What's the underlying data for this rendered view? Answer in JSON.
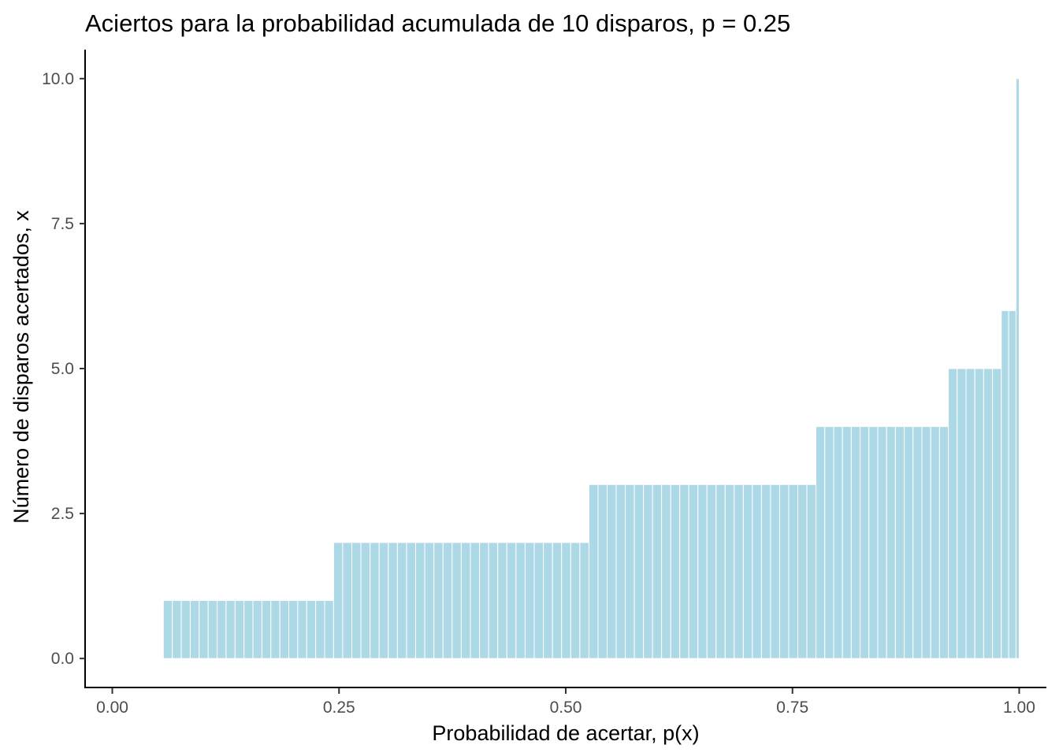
{
  "chart_data": {
    "type": "bar",
    "title": "Aciertos para la probabilidad acumulada de 10 disparos, p = 0.25",
    "xlabel": "Probabilidad de acertar, p(x)",
    "ylabel": "Número de disparos acertados, x",
    "xlim": [
      -0.03,
      1.03
    ],
    "ylim": [
      -0.5,
      10.5
    ],
    "xticks": [
      0.0,
      0.25,
      0.5,
      0.75,
      1.0
    ],
    "xtick_labels": [
      "0.00",
      "0.25",
      "0.50",
      "0.75",
      "1.00"
    ],
    "yticks": [
      0.0,
      2.5,
      5.0,
      7.5,
      10.0
    ],
    "ytick_labels": [
      "0.0",
      "2.5",
      "5.0",
      "7.5",
      "10.0"
    ],
    "bar_color": "#ADD8E6",
    "grid": false,
    "steps": [
      {
        "x_start": 0.0563,
        "x_end": 0.244,
        "value": 1
      },
      {
        "x_start": 0.244,
        "x_end": 0.5256,
        "value": 2
      },
      {
        "x_start": 0.5256,
        "x_end": 0.7759,
        "value": 3
      },
      {
        "x_start": 0.7759,
        "x_end": 0.9219,
        "value": 4
      },
      {
        "x_start": 0.9219,
        "x_end": 0.9803,
        "value": 5
      },
      {
        "x_start": 0.9803,
        "x_end": 0.9965,
        "value": 6
      },
      {
        "x_start": 0.9965,
        "x_end": 1.0,
        "value": 10
      }
    ],
    "bar_width": 0.01
  }
}
